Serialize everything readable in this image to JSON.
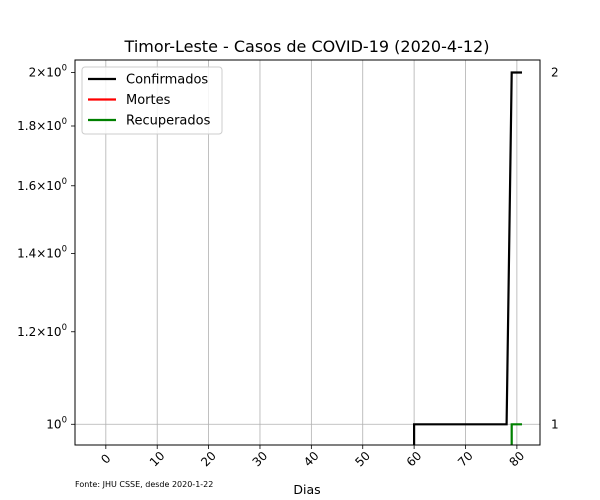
{
  "chart_data": {
    "type": "line",
    "title": "Timor-Leste - Casos de COVID-19 (2020-4-12)",
    "xlabel": "Dias",
    "ylabel": "",
    "source_note": "Fonte: JHU CSSE, desde 2020-1-22",
    "xlim": [
      -6,
      84.5
    ],
    "ylim": [
      0.96,
      2.05
    ],
    "yscale": "log",
    "grid": true,
    "legend_position": "top-left",
    "x_ticks": [
      0,
      10,
      20,
      30,
      40,
      50,
      60,
      70,
      80
    ],
    "y_ticks": [
      {
        "value": 1.0,
        "base": "10",
        "exp": "0",
        "coef": ""
      },
      {
        "value": 1.2,
        "base": "10",
        "exp": "0",
        "coef": "1.2×"
      },
      {
        "value": 1.4,
        "base": "10",
        "exp": "0",
        "coef": "1.4×"
      },
      {
        "value": 1.6,
        "base": "10",
        "exp": "0",
        "coef": "1.6×"
      },
      {
        "value": 1.8,
        "base": "10",
        "exp": "0",
        "coef": "1.8×"
      },
      {
        "value": 2.0,
        "base": "10",
        "exp": "0",
        "coef": "2×"
      }
    ],
    "series": [
      {
        "name": "Confirmados",
        "color": "#000000",
        "points": [
          [
            60,
            0.9
          ],
          [
            60,
            1
          ],
          [
            78,
            1
          ],
          [
            79,
            2
          ],
          [
            81,
            2
          ]
        ],
        "end_label": "2"
      },
      {
        "name": "Mortes",
        "color": "#ff0000",
        "points": []
      },
      {
        "name": "Recuperados",
        "color": "#008000",
        "points": [
          [
            79,
            0.9
          ],
          [
            79,
            1
          ],
          [
            81,
            1
          ]
        ],
        "end_label": "1"
      }
    ]
  }
}
